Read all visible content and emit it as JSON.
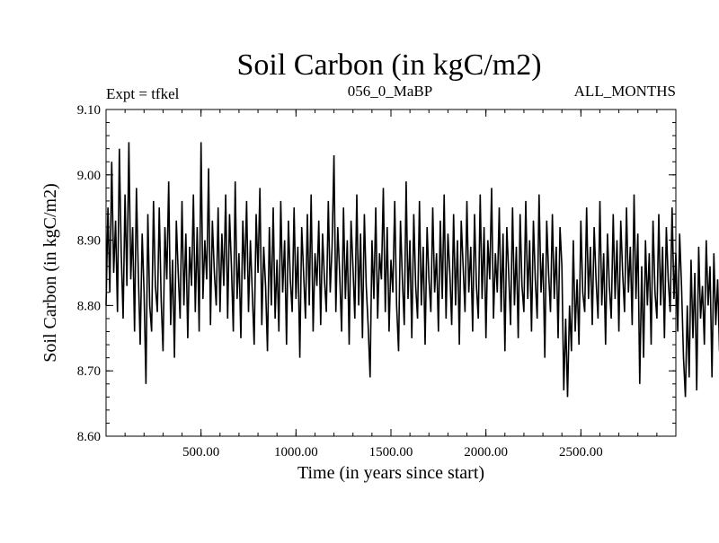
{
  "chart_data": {
    "type": "line",
    "title": "Soil Carbon (in kgC/m2)",
    "subtitle_left": "Expt = tfkel",
    "subtitle_center": "056_0_MaBP",
    "subtitle_right": "ALL_MONTHS",
    "xlabel": "Time (in years since start)",
    "ylabel": "Soil Carbon (in kgC/m2)",
    "xlim": [
      0,
      3000
    ],
    "ylim": [
      8.6,
      9.1
    ],
    "xticks": [
      500,
      1000,
      1500,
      2000,
      2500
    ],
    "xtick_labels": [
      "500.00",
      "1000.00",
      "1500.00",
      "2000.00",
      "2500.00"
    ],
    "yticks": [
      8.6,
      8.7,
      8.8,
      8.9,
      9.0,
      9.1
    ],
    "ytick_labels": [
      "8.60",
      "8.70",
      "8.80",
      "8.90",
      "9.00",
      "9.10"
    ],
    "grid": false,
    "legend": "none",
    "series": [
      {
        "color": "#000000",
        "x_step": 10,
        "x_start": 0,
        "y": [
          8.8,
          8.95,
          8.82,
          9.02,
          8.85,
          8.93,
          8.79,
          9.04,
          8.88,
          8.78,
          8.97,
          8.83,
          9.05,
          8.84,
          8.92,
          8.76,
          8.98,
          8.85,
          8.74,
          8.91,
          8.82,
          8.68,
          8.94,
          8.8,
          8.76,
          8.96,
          8.83,
          8.79,
          8.95,
          8.81,
          8.73,
          8.92,
          8.84,
          8.99,
          8.77,
          8.87,
          8.72,
          8.93,
          8.85,
          8.78,
          8.96,
          8.8,
          8.91,
          8.75,
          8.89,
          8.83,
          8.97,
          8.79,
          8.92,
          8.76,
          9.05,
          8.81,
          8.9,
          8.84,
          9.01,
          8.77,
          8.93,
          8.85,
          8.8,
          8.95,
          8.79,
          8.91,
          8.83,
          8.97,
          8.78,
          8.94,
          8.86,
          8.76,
          8.99,
          8.81,
          8.88,
          8.75,
          8.93,
          8.84,
          8.96,
          8.79,
          8.9,
          8.82,
          8.74,
          8.94,
          8.85,
          8.98,
          8.77,
          8.89,
          8.83,
          8.73,
          8.92,
          8.8,
          8.95,
          8.78,
          8.87,
          8.76,
          8.96,
          8.82,
          8.9,
          8.74,
          8.93,
          8.84,
          8.79,
          8.95,
          8.81,
          8.89,
          8.72,
          8.92,
          8.85,
          8.78,
          8.94,
          8.8,
          8.97,
          8.76,
          8.88,
          8.83,
          8.93,
          8.77,
          8.91,
          8.84,
          8.79,
          8.96,
          8.82,
          8.89,
          9.03,
          8.79,
          8.92,
          8.85,
          8.76,
          8.95,
          8.81,
          8.9,
          8.74,
          8.93,
          8.86,
          8.78,
          8.97,
          8.8,
          8.91,
          8.75,
          8.94,
          8.83,
          8.77,
          8.69,
          8.9,
          8.81,
          8.95,
          8.78,
          8.88,
          8.84,
          8.98,
          8.79,
          8.92,
          8.76,
          8.87,
          8.82,
          8.96,
          8.8,
          8.73,
          8.93,
          8.84,
          8.77,
          8.99,
          8.81,
          8.9,
          8.75,
          8.94,
          8.83,
          8.78,
          8.96,
          8.8,
          8.89,
          8.74,
          8.92,
          8.84,
          8.79,
          8.95,
          8.82,
          8.88,
          8.76,
          8.93,
          8.81,
          8.97,
          8.78,
          8.91,
          8.85,
          8.77,
          8.94,
          8.8,
          8.9,
          8.74,
          8.93,
          8.86,
          8.79,
          8.96,
          8.82,
          8.89,
          8.76,
          8.94,
          8.83,
          8.78,
          8.97,
          8.81,
          8.92,
          8.75,
          8.9,
          8.84,
          8.98,
          8.78,
          8.88,
          8.82,
          8.95,
          8.79,
          8.91,
          8.73,
          8.92,
          8.85,
          8.77,
          8.95,
          8.8,
          8.89,
          8.75,
          8.94,
          8.83,
          8.79,
          8.96,
          8.81,
          8.9,
          8.76,
          8.93,
          8.84,
          8.78,
          8.97,
          8.82,
          8.88,
          8.72,
          8.93,
          8.85,
          8.79,
          8.94,
          8.81,
          8.89,
          8.75,
          8.92,
          8.86,
          8.67,
          8.78,
          8.66,
          8.8,
          8.73,
          8.9,
          8.76,
          8.84,
          8.74,
          8.93,
          8.82,
          8.79,
          8.95,
          8.81,
          8.89,
          8.77,
          8.92,
          8.84,
          8.78,
          8.96,
          8.8,
          8.88,
          8.74,
          8.91,
          8.83,
          8.78,
          8.94,
          8.81,
          8.9,
          8.76,
          8.93,
          8.85,
          8.79,
          8.95,
          8.82,
          8.89,
          8.77,
          8.97,
          8.81,
          8.91,
          8.68,
          8.86,
          8.72,
          8.9,
          8.8,
          8.88,
          8.74,
          8.93,
          8.82,
          8.78,
          8.94,
          8.8,
          8.89,
          8.75,
          8.92,
          8.84,
          8.79,
          8.95,
          8.81,
          8.88,
          8.76,
          8.91,
          8.83,
          8.72,
          8.66,
          8.8,
          8.69,
          8.87,
          8.75,
          8.85,
          8.67,
          8.89,
          8.78,
          8.83,
          8.74,
          8.9,
          8.8,
          8.86,
          8.69,
          8.88,
          8.77,
          8.84,
          8.73,
          8.91,
          8.79,
          8.86,
          8.74,
          8.93,
          8.81,
          8.77,
          8.92,
          8.82,
          8.88,
          8.75,
          8.94,
          8.83,
          8.78,
          8.89,
          8.8,
          8.85,
          8.7,
          8.92,
          8.81,
          8.87,
          8.75,
          8.9,
          8.82,
          8.84,
          8.79
        ]
      }
    ]
  }
}
